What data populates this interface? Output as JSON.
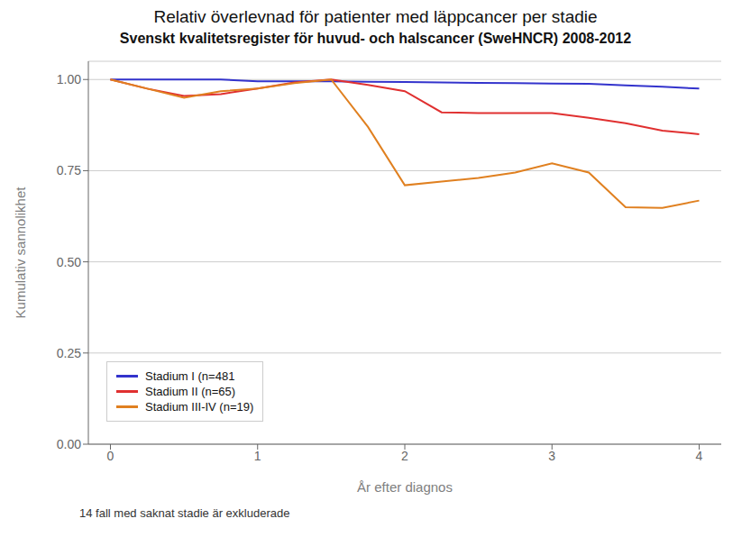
{
  "chart_data": {
    "type": "line",
    "title": "Relativ överlevnad för patienter med läppcancer per stadie",
    "subtitle": "Svenskt kvalitetsregister för huvud- och halscancer (SweHNCR) 2008-2012",
    "xlabel": "År efter diagnos",
    "ylabel": "Kumulativ sannolikhet",
    "footnote": "14 fall med saknat stadie är exkluderade",
    "x": [
      0,
      0.25,
      0.5,
      0.75,
      1.0,
      1.25,
      1.5,
      1.75,
      2.0,
      2.25,
      2.5,
      2.75,
      3.0,
      3.25,
      3.5,
      3.75,
      4.0
    ],
    "series": [
      {
        "name": "Stadium I (n=481",
        "color": "#3333cc",
        "values": [
          1.0,
          1.0,
          1.0,
          1.0,
          0.995,
          0.995,
          0.995,
          0.994,
          0.993,
          0.992,
          0.991,
          0.99,
          0.989,
          0.988,
          0.984,
          0.98,
          0.975
        ]
      },
      {
        "name": "Stadium II (n=65)",
        "color": "#e03030",
        "values": [
          1.0,
          0.975,
          0.955,
          0.96,
          0.975,
          0.992,
          1.0,
          0.985,
          0.968,
          0.91,
          0.908,
          0.908,
          0.908,
          0.895,
          0.88,
          0.86,
          0.85
        ]
      },
      {
        "name": "Stadium III-IV (n=19)",
        "color": "#e08020",
        "values": [
          1.0,
          0.975,
          0.95,
          0.968,
          0.975,
          0.99,
          1.0,
          0.87,
          0.71,
          0.72,
          0.73,
          0.745,
          0.77,
          0.745,
          0.65,
          0.648,
          0.668
        ]
      }
    ],
    "xlim": [
      -0.15,
      4.15
    ],
    "xticks": [
      0,
      1,
      2,
      3,
      4
    ],
    "ylim": [
      0.0,
      1.05
    ],
    "yticks": [
      {
        "value": 0,
        "label": "0.00"
      },
      0.25,
      {
        "value": 0.5,
        "label": "0.50"
      },
      0.75,
      {
        "value": 1,
        "label": "1.00"
      }
    ],
    "grid": "y",
    "legend": "lower left"
  }
}
